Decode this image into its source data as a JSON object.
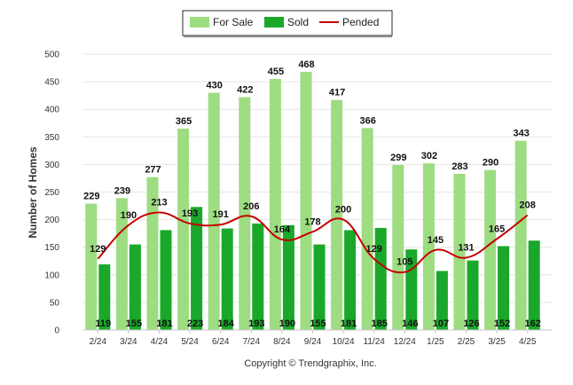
{
  "chart_data": {
    "type": "bar",
    "categories": [
      "2/24",
      "3/24",
      "4/24",
      "5/24",
      "6/24",
      "7/24",
      "8/24",
      "9/24",
      "10/24",
      "11/24",
      "12/24",
      "1/25",
      "2/25",
      "3/25",
      "4/25"
    ],
    "series": [
      {
        "name": "For Sale",
        "kind": "bar",
        "color": "#9edc82",
        "values": [
          229,
          239,
          277,
          365,
          430,
          422,
          455,
          468,
          417,
          366,
          299,
          302,
          283,
          290,
          343
        ]
      },
      {
        "name": "Sold",
        "kind": "bar",
        "color": "#1aa82a",
        "values": [
          119,
          155,
          181,
          223,
          184,
          193,
          190,
          155,
          181,
          185,
          146,
          107,
          126,
          152,
          162
        ]
      },
      {
        "name": "Pended",
        "kind": "line",
        "color": "#c40000",
        "values": [
          129,
          190,
          213,
          193,
          191,
          206,
          164,
          178,
          200,
          129,
          105,
          145,
          131,
          165,
          208
        ]
      }
    ],
    "ylabel": "Number of Homes",
    "xlabel": "",
    "ylim": [
      0,
      500
    ],
    "yticks": [
      0,
      50,
      100,
      150,
      200,
      250,
      300,
      350,
      400,
      450,
      500
    ],
    "grid": true,
    "legend_position": "top-center"
  },
  "footer": "Copyright © Trendgraphix, Inc."
}
